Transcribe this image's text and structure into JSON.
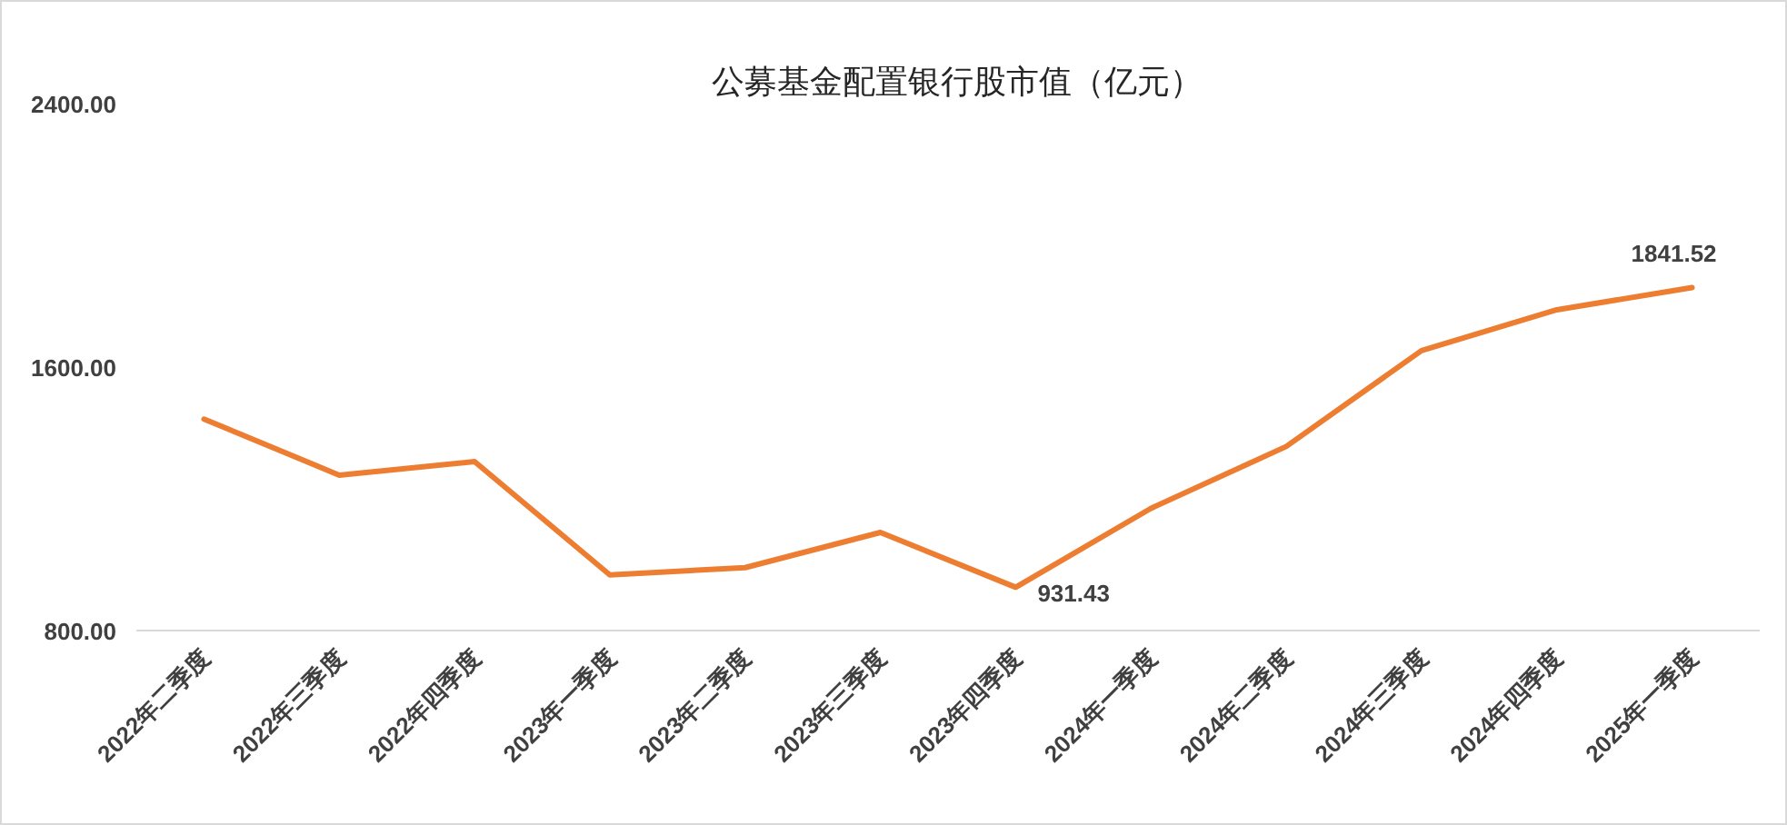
{
  "chart_data": {
    "type": "line",
    "title": "公募基金配置银行股市值（亿元）",
    "categories": [
      "2022年二季度",
      "2022年三季度",
      "2022年四季度",
      "2023年一季度",
      "2023年二季度",
      "2023年三季度",
      "2023年四季度",
      "2024年一季度",
      "2024年二季度",
      "2024年三季度",
      "2024年四季度",
      "2025年一季度"
    ],
    "series": [
      {
        "color": "#ed7d31",
        "values": [
          1442,
          1272,
          1313,
          969,
          991,
          1098,
          931.43,
          1171,
          1359,
          1650,
          1774,
          1841.52
        ],
        "value_labels": [
          null,
          null,
          null,
          null,
          null,
          null,
          "931.43",
          null,
          null,
          null,
          null,
          "1841.52"
        ]
      }
    ],
    "ylim": [
      800,
      2400
    ],
    "yticks": [
      {
        "value": 800,
        "label": "800.00"
      },
      {
        "value": 1600,
        "label": "1600.00"
      },
      {
        "value": 2400,
        "label": "2400.00"
      }
    ],
    "grid": false,
    "marker": "none",
    "line_style": "solid"
  }
}
